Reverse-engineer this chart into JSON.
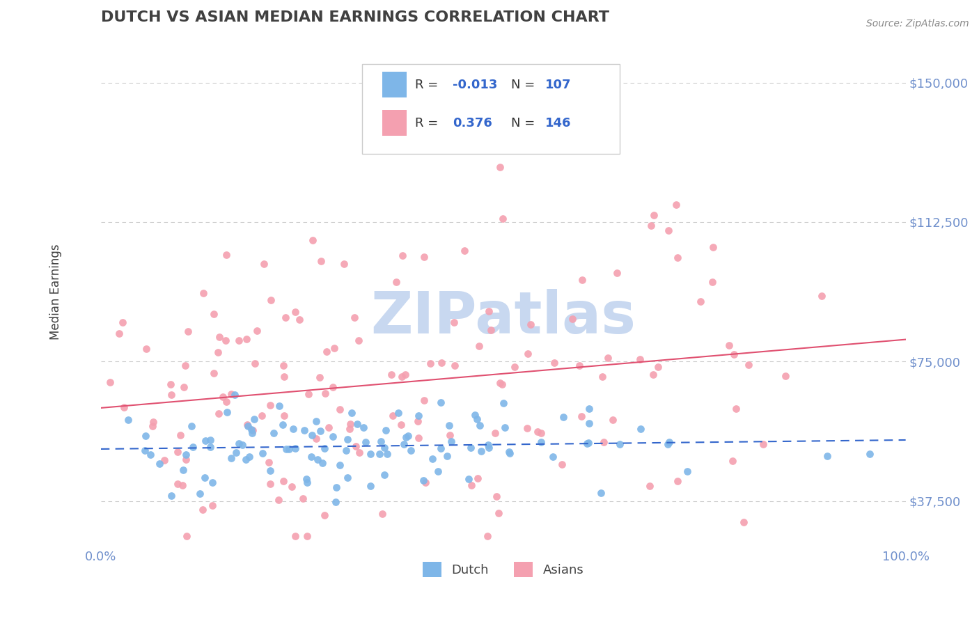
{
  "title": "DUTCH VS ASIAN MEDIAN EARNINGS CORRELATION CHART",
  "source": "Source: ZipAtlas.com",
  "xlabel": "",
  "ylabel": "Median Earnings",
  "xlim": [
    0,
    1
  ],
  "ylim": [
    25000,
    162500
  ],
  "yticks": [
    37500,
    75000,
    112500,
    150000
  ],
  "ytick_labels": [
    "$37,500",
    "$75,000",
    "$112,500",
    "$150,000"
  ],
  "xticks": [
    0,
    1
  ],
  "xtick_labels": [
    "0.0%",
    "100.0%"
  ],
  "grid_color": "#cccccc",
  "background_color": "#ffffff",
  "dutch_color": "#7eb6e8",
  "asian_color": "#f4a0b0",
  "dutch_line_color": "#3366cc",
  "asian_line_color": "#e05070",
  "dutch_R": -0.013,
  "dutch_N": 107,
  "asian_R": 0.376,
  "asian_N": 146,
  "title_color": "#404040",
  "axis_label_color": "#404040",
  "tick_color": "#7090cc",
  "legend_R_color": "#3366cc",
  "legend_N_color": "#3366cc",
  "watermark_color": "#c8d8f0",
  "dutch_seed": 42,
  "asian_seed": 123
}
